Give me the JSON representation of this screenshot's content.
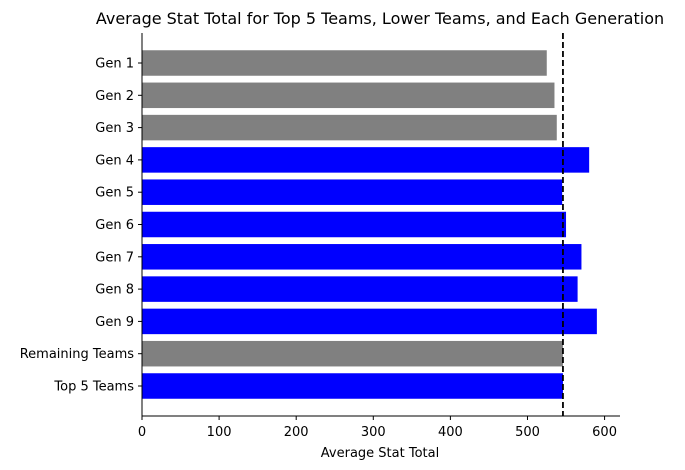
{
  "chart_data": {
    "type": "bar",
    "orientation": "horizontal",
    "title": "Average Stat Total for Top 5 Teams, Lower Teams, and Each Generation",
    "xlabel": "Average Stat Total",
    "ylabel": "",
    "xlim": [
      0,
      620
    ],
    "xticks": [
      0,
      100,
      200,
      300,
      400,
      500,
      600
    ],
    "grid": false,
    "legend": "none",
    "categories": [
      "Gen 1",
      "Gen 2",
      "Gen 3",
      "Gen 4",
      "Gen 5",
      "Gen 6",
      "Gen 7",
      "Gen 8",
      "Gen 9",
      "Remaining Teams",
      "Top 5 Teams"
    ],
    "values": [
      525,
      535,
      538,
      580,
      545,
      550,
      570,
      565,
      590,
      546,
      546
    ],
    "bar_colors": [
      "#808080",
      "#808080",
      "#808080",
      "#0000ff",
      "#0000ff",
      "#0000ff",
      "#0000ff",
      "#0000ff",
      "#0000ff",
      "#808080",
      "#0000ff"
    ],
    "reference_line": {
      "value": 546,
      "style": "dashed",
      "color": "#000000"
    }
  }
}
